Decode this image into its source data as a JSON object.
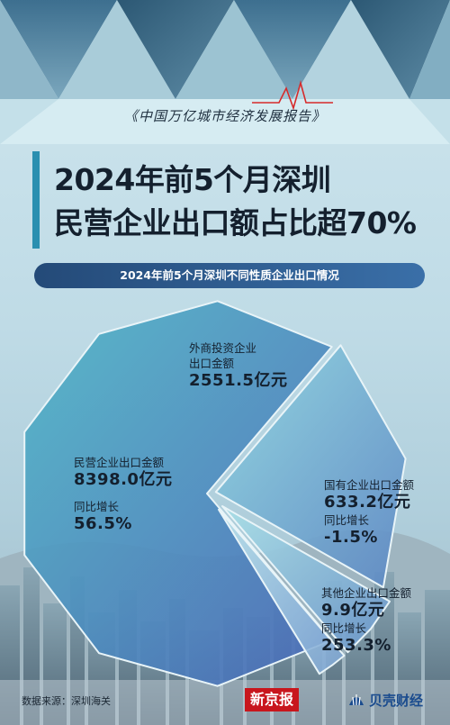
{
  "header": {
    "report_name": "《中国万亿城市经济发展报告》",
    "title_line1": "2024年前5个月深圳",
    "title_line2": "民营企业出口额占比超70%",
    "subtitle": "2024年前5个月深圳不同性质企业出口情况"
  },
  "chart_data": {
    "type": "pie",
    "unit": "亿元",
    "title": "2024年前5个月深圳不同性质企业出口情况",
    "slices": [
      {
        "label": "民营企业出口金额",
        "value": 8398.0,
        "value_text": "8398.0亿元",
        "growth_label": "同比增长",
        "growth": 56.5,
        "growth_text": "56.5%",
        "color": "#5fb8c8"
      },
      {
        "label": "外商投资企业出口金额",
        "value": 2551.5,
        "value_text": "2551.5亿元",
        "color": "#7ec7d6"
      },
      {
        "label": "国有企业出口金额",
        "value": 633.2,
        "value_text": "633.2亿元",
        "growth_label": "同比增长",
        "growth": -1.5,
        "growth_text": "-1.5%",
        "color": "#9dd4e0"
      },
      {
        "label": "其他企业出口金额",
        "value": 9.9,
        "value_text": "9.9亿元",
        "growth_label": "同比增长",
        "growth": 253.3,
        "growth_text": "253.3%",
        "color": "#b6e0e8"
      }
    ]
  },
  "labels": {
    "foreign_name_line1": "外商投资企业",
    "foreign_name_line2": "出口金额"
  },
  "footer": {
    "source": "数据来源：深圳海关",
    "logo_xjb": "新京报",
    "logo_bk": "贝壳财经",
    "watermark": "贝壳财经"
  },
  "colors": {
    "accent": "#2a8fb0",
    "pill": "#2c5a8e",
    "brand_red": "#c8161d"
  }
}
